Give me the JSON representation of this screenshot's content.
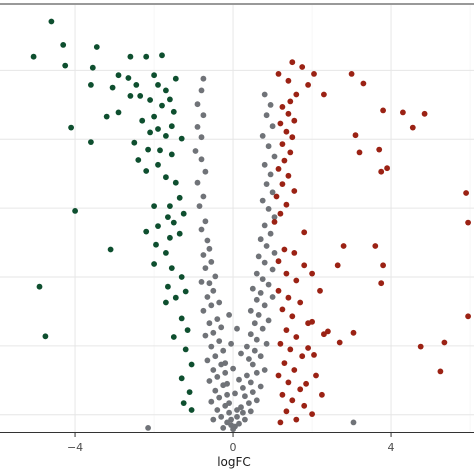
{
  "chart_data": {
    "type": "scatter",
    "title": "",
    "xlabel": "logFC",
    "ylabel": "",
    "xlim": [
      -5.9,
      6.1
    ],
    "ylim": [
      0,
      6.2
    ],
    "x_ticks": [
      -4,
      0,
      4
    ],
    "x_tick_labels": [
      "−4",
      "0",
      "4"
    ],
    "grid": true,
    "legend": "none",
    "colors": {
      "down": "#0e4f2f",
      "ns": "#707378",
      "up": "#9b2214"
    },
    "series": [
      {
        "group": "down",
        "points": [
          [
            -4.6,
            5.96
          ],
          [
            -4.3,
            5.62
          ],
          [
            -3.45,
            5.59
          ],
          [
            -5.05,
            5.45
          ],
          [
            -3.55,
            5.29
          ],
          [
            -2.6,
            5.45
          ],
          [
            -4.25,
            5.32
          ],
          [
            -3.6,
            5.04
          ],
          [
            -2.2,
            5.45
          ],
          [
            -1.8,
            5.47
          ],
          [
            -2.65,
            5.14
          ],
          [
            -2.45,
            5.04
          ],
          [
            -3.05,
            5.0
          ],
          [
            -2.9,
            5.18
          ],
          [
            -2.0,
            5.18
          ],
          [
            -1.9,
            5.04
          ],
          [
            -1.45,
            5.13
          ],
          [
            -1.7,
            4.96
          ],
          [
            -2.35,
            4.88
          ],
          [
            -2.6,
            4.88
          ],
          [
            -2.1,
            4.82
          ],
          [
            -1.6,
            4.83
          ],
          [
            -1.5,
            4.65
          ],
          [
            -1.8,
            4.74
          ],
          [
            -2.0,
            4.58
          ],
          [
            -2.9,
            4.64
          ],
          [
            -3.2,
            4.58
          ],
          [
            -1.55,
            4.44
          ],
          [
            -1.9,
            4.4
          ],
          [
            -2.3,
            4.52
          ],
          [
            -1.3,
            4.26
          ],
          [
            -1.7,
            4.3
          ],
          [
            -2.1,
            4.35
          ],
          [
            -4.1,
            4.42
          ],
          [
            -3.6,
            4.21
          ],
          [
            -2.5,
            4.2
          ],
          [
            -2.15,
            4.1
          ],
          [
            -1.85,
            4.09
          ],
          [
            -1.55,
            4.03
          ],
          [
            -2.4,
            3.95
          ],
          [
            -1.9,
            3.88
          ],
          [
            -2.2,
            3.79
          ],
          [
            -1.7,
            3.7
          ],
          [
            -1.45,
            3.62
          ],
          [
            -1.35,
            3.4
          ],
          [
            -1.6,
            3.28
          ],
          [
            -2.0,
            3.28
          ],
          [
            -4.0,
            3.21
          ],
          [
            -1.65,
            3.12
          ],
          [
            -1.25,
            3.17
          ],
          [
            -1.5,
            3.04
          ],
          [
            -1.9,
            2.99
          ],
          [
            -2.2,
            2.91
          ],
          [
            -1.35,
            2.88
          ],
          [
            -1.6,
            2.82
          ],
          [
            -1.95,
            2.72
          ],
          [
            -3.1,
            2.65
          ],
          [
            -1.7,
            2.6
          ],
          [
            -2.0,
            2.44
          ],
          [
            -1.55,
            2.38
          ],
          [
            -1.3,
            2.25
          ],
          [
            -1.65,
            2.11
          ],
          [
            -4.9,
            2.11
          ],
          [
            -1.2,
            2.04
          ],
          [
            -1.45,
            1.95
          ],
          [
            -1.7,
            1.88
          ],
          [
            -1.3,
            1.65
          ],
          [
            -1.15,
            1.48
          ],
          [
            -1.5,
            1.38
          ],
          [
            -4.75,
            1.39
          ],
          [
            -1.2,
            1.2
          ],
          [
            -1.05,
            0.98
          ],
          [
            -1.3,
            0.78
          ],
          [
            -1.1,
            0.58
          ],
          [
            -1.25,
            0.42
          ],
          [
            -1.05,
            0.32
          ]
        ]
      },
      {
        "group": "ns",
        "points": [
          [
            -0.75,
            5.13
          ],
          [
            -0.8,
            4.96
          ],
          [
            -0.9,
            4.76
          ],
          [
            -0.75,
            4.6
          ],
          [
            -0.9,
            4.43
          ],
          [
            -0.8,
            4.28
          ],
          [
            -0.95,
            4.08
          ],
          [
            -0.8,
            3.96
          ],
          [
            -0.7,
            3.78
          ],
          [
            -0.9,
            3.62
          ],
          [
            -0.75,
            3.42
          ],
          [
            -0.85,
            3.28
          ],
          [
            -0.7,
            3.06
          ],
          [
            -0.8,
            2.94
          ],
          [
            -0.65,
            2.78
          ],
          [
            -0.6,
            2.66
          ],
          [
            -0.75,
            2.57
          ],
          [
            -0.55,
            2.47
          ],
          [
            -0.7,
            2.38
          ],
          [
            -0.45,
            2.26
          ],
          [
            -0.6,
            2.16
          ],
          [
            -0.8,
            2.18
          ],
          [
            -0.5,
            2.05
          ],
          [
            -0.65,
            1.96
          ],
          [
            -0.35,
            1.88
          ],
          [
            -0.55,
            1.84
          ],
          [
            -0.75,
            1.76
          ],
          [
            -0.4,
            1.64
          ],
          [
            -0.6,
            1.58
          ],
          [
            -0.3,
            1.52
          ],
          [
            -0.5,
            1.44
          ],
          [
            -0.7,
            1.4
          ],
          [
            -0.35,
            1.32
          ],
          [
            -0.55,
            1.24
          ],
          [
            -0.25,
            1.18
          ],
          [
            -0.45,
            1.1
          ],
          [
            -0.65,
            1.04
          ],
          [
            -0.3,
            0.98
          ],
          [
            -0.5,
            0.9
          ],
          [
            -0.2,
            0.86
          ],
          [
            -0.4,
            0.8
          ],
          [
            -0.6,
            0.74
          ],
          [
            -0.25,
            0.68
          ],
          [
            -0.45,
            0.6
          ],
          [
            -0.15,
            0.54
          ],
          [
            -0.35,
            0.5
          ],
          [
            -0.55,
            0.44
          ],
          [
            -0.2,
            0.38
          ],
          [
            -0.4,
            0.32
          ],
          [
            -0.1,
            0.28
          ],
          [
            -0.3,
            0.22
          ],
          [
            -0.5,
            0.18
          ],
          [
            -0.15,
            0.14
          ],
          [
            -0.05,
            0.1
          ],
          [
            -0.25,
            0.06
          ],
          [
            -2.15,
            0.06
          ],
          [
            0.05,
            0.08
          ],
          [
            0.15,
            0.12
          ],
          [
            0.3,
            0.18
          ],
          [
            0.1,
            0.22
          ],
          [
            0.25,
            0.28
          ],
          [
            0.45,
            0.3
          ],
          [
            0.2,
            0.36
          ],
          [
            0.4,
            0.42
          ],
          [
            0.6,
            0.46
          ],
          [
            0.3,
            0.52
          ],
          [
            0.5,
            0.58
          ],
          [
            0.25,
            0.64
          ],
          [
            0.7,
            0.66
          ],
          [
            0.45,
            0.72
          ],
          [
            0.35,
            0.82
          ],
          [
            0.6,
            0.86
          ],
          [
            0.8,
            0.9
          ],
          [
            0.5,
            0.98
          ],
          [
            0.4,
            1.06
          ],
          [
            0.7,
            1.1
          ],
          [
            0.55,
            1.18
          ],
          [
            0.35,
            1.24
          ],
          [
            0.85,
            1.28
          ],
          [
            0.6,
            1.34
          ],
          [
            0.45,
            1.42
          ],
          [
            0.75,
            1.5
          ],
          [
            0.55,
            1.58
          ],
          [
            0.9,
            1.62
          ],
          [
            0.65,
            1.7
          ],
          [
            0.45,
            1.76
          ],
          [
            0.8,
            1.84
          ],
          [
            0.6,
            1.92
          ],
          [
            1.0,
            1.96
          ],
          [
            0.7,
            2.02
          ],
          [
            0.5,
            2.08
          ],
          [
            0.9,
            2.14
          ],
          [
            0.75,
            2.22
          ],
          [
            0.6,
            2.3
          ],
          [
            1.0,
            2.36
          ],
          [
            0.8,
            2.46
          ],
          [
            0.65,
            2.55
          ],
          [
            1.05,
            2.6
          ],
          [
            0.85,
            2.7
          ],
          [
            0.7,
            2.8
          ],
          [
            0.95,
            2.88
          ],
          [
            0.8,
            3.0
          ],
          [
            1.05,
            3.12
          ],
          [
            0.9,
            3.24
          ],
          [
            0.75,
            3.36
          ],
          [
            1.0,
            3.48
          ],
          [
            0.85,
            3.6
          ],
          [
            0.95,
            3.74
          ],
          [
            0.8,
            3.88
          ],
          [
            1.05,
            4.0
          ],
          [
            0.9,
            4.15
          ],
          [
            0.75,
            4.3
          ],
          [
            1.0,
            4.44
          ],
          [
            0.85,
            4.6
          ],
          [
            0.95,
            4.75
          ],
          [
            0.8,
            4.9
          ],
          [
            3.05,
            0.14
          ],
          [
            0.0,
            0.04
          ],
          [
            -0.05,
            0.18
          ],
          [
            0.1,
            0.32
          ],
          [
            -0.1,
            0.42
          ],
          [
            0.05,
            0.56
          ],
          [
            -0.15,
            0.7
          ],
          [
            0.15,
            0.76
          ],
          [
            0.0,
            0.92
          ],
          [
            -0.2,
            1.0
          ],
          [
            0.2,
            1.14
          ],
          [
            -0.05,
            1.28
          ],
          [
            0.1,
            1.5
          ],
          [
            -0.1,
            1.7
          ]
        ]
      },
      {
        "group": "up",
        "points": [
          [
            1.5,
            5.37
          ],
          [
            1.75,
            5.3
          ],
          [
            1.9,
            5.04
          ],
          [
            2.05,
            5.2
          ],
          [
            1.15,
            5.2
          ],
          [
            1.4,
            5.1
          ],
          [
            2.3,
            4.9
          ],
          [
            3.0,
            5.2
          ],
          [
            3.3,
            5.06
          ],
          [
            1.45,
            4.8
          ],
          [
            1.6,
            4.9
          ],
          [
            1.25,
            4.72
          ],
          [
            1.4,
            4.62
          ],
          [
            1.55,
            4.52
          ],
          [
            1.2,
            4.48
          ],
          [
            1.35,
            4.36
          ],
          [
            1.5,
            4.28
          ],
          [
            1.25,
            4.18
          ],
          [
            1.45,
            4.06
          ],
          [
            1.3,
            3.94
          ],
          [
            1.15,
            3.82
          ],
          [
            1.4,
            3.72
          ],
          [
            1.25,
            3.6
          ],
          [
            1.55,
            3.5
          ],
          [
            1.1,
            3.42
          ],
          [
            1.35,
            3.3
          ],
          [
            1.2,
            3.17
          ],
          [
            1.05,
            3.05
          ],
          [
            4.3,
            4.64
          ],
          [
            4.85,
            4.62
          ],
          [
            3.8,
            4.67
          ],
          [
            4.55,
            4.42
          ],
          [
            3.1,
            4.31
          ],
          [
            3.7,
            4.1
          ],
          [
            3.2,
            4.06
          ],
          [
            3.9,
            3.83
          ],
          [
            3.75,
            3.78
          ],
          [
            5.9,
            3.47
          ],
          [
            5.95,
            3.04
          ],
          [
            1.3,
            2.65
          ],
          [
            1.15,
            2.48
          ],
          [
            1.55,
            2.6
          ],
          [
            1.8,
            2.42
          ],
          [
            1.35,
            2.3
          ],
          [
            1.6,
            2.2
          ],
          [
            1.15,
            2.05
          ],
          [
            1.4,
            1.95
          ],
          [
            1.7,
            1.88
          ],
          [
            1.25,
            1.78
          ],
          [
            1.5,
            1.68
          ],
          [
            1.9,
            1.58
          ],
          [
            1.35,
            1.48
          ],
          [
            1.6,
            1.38
          ],
          [
            1.2,
            1.28
          ],
          [
            1.45,
            1.2
          ],
          [
            1.75,
            1.1
          ],
          [
            1.3,
            1.0
          ],
          [
            1.55,
            0.9
          ],
          [
            1.15,
            0.82
          ],
          [
            1.4,
            0.72
          ],
          [
            1.7,
            0.62
          ],
          [
            1.25,
            0.54
          ],
          [
            1.5,
            0.46
          ],
          [
            1.8,
            0.38
          ],
          [
            1.35,
            0.3
          ],
          [
            2.0,
            0.26
          ],
          [
            1.6,
            0.18
          ],
          [
            1.2,
            0.14
          ],
          [
            1.85,
            0.7
          ],
          [
            2.05,
            1.12
          ],
          [
            2.3,
            1.42
          ],
          [
            1.9,
            1.22
          ],
          [
            2.1,
            0.82
          ],
          [
            2.65,
            2.42
          ],
          [
            2.8,
            2.7
          ],
          [
            3.6,
            2.7
          ],
          [
            3.8,
            2.42
          ],
          [
            3.75,
            2.16
          ],
          [
            2.4,
            1.46
          ],
          [
            2.0,
            1.6
          ],
          [
            3.05,
            1.44
          ],
          [
            2.7,
            1.3
          ],
          [
            2.25,
            0.54
          ],
          [
            4.75,
            1.24
          ],
          [
            5.35,
            1.3
          ],
          [
            5.95,
            1.68
          ],
          [
            5.25,
            0.88
          ],
          [
            2.0,
            2.3
          ],
          [
            1.8,
            2.9
          ],
          [
            2.2,
            2.05
          ]
        ]
      }
    ]
  }
}
